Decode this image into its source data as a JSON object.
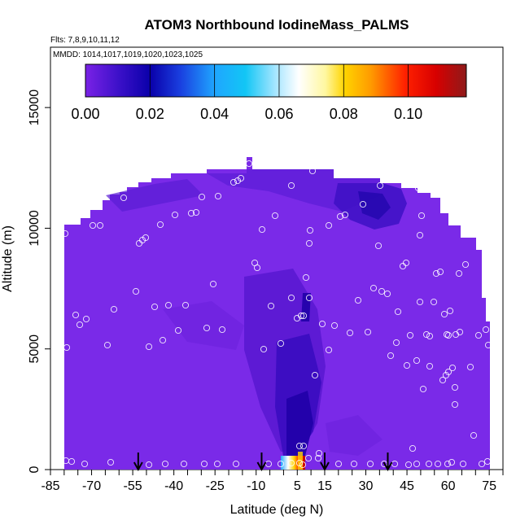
{
  "chart_data": {
    "type": "heatmap",
    "title": "ATOM3 Northbound IodineMass_PALMS",
    "flights_label": "Flts: 7,8,9,10,11,12",
    "dates_label": "MMDD: 1014,1017,1019,1020,1023,1025",
    "xlabel": "Latitude (deg N)",
    "ylabel": "Altitude (m)",
    "xlim": [
      -85,
      80
    ],
    "ylim": [
      0,
      17500
    ],
    "x_ticks": [
      "-85",
      "-70",
      "-55",
      "-40",
      "-25",
      "-10",
      "5",
      "15",
      "30",
      "45",
      "60",
      "75"
    ],
    "y_ticks": [
      "0",
      "5000",
      "10000",
      "15000"
    ],
    "colorbar": {
      "ticks": [
        "0.00",
        "0.02",
        "0.04",
        "0.06",
        "0.08",
        "0.10"
      ],
      "range": [
        0,
        0.118
      ]
    },
    "arrow_latitudes": [
      -53,
      -8,
      15,
      38
    ],
    "grid": false,
    "legend": "none"
  }
}
